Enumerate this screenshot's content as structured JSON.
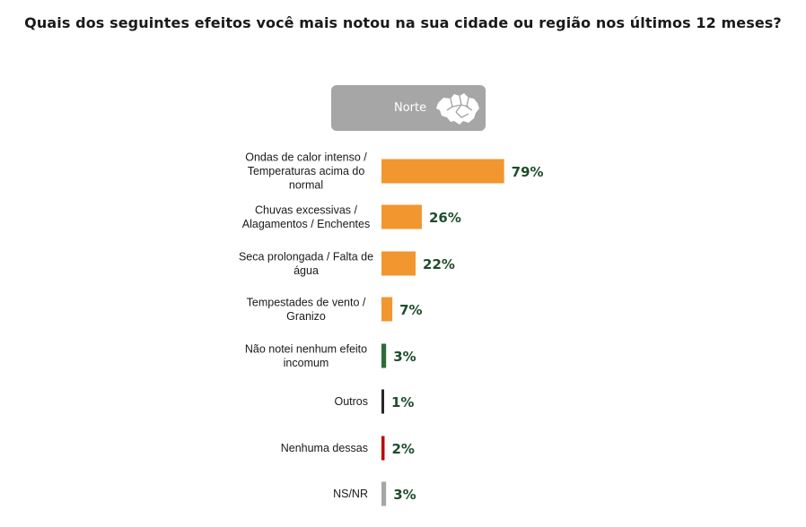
{
  "title": "Quais dos seguintes efeitos você mais notou na sua cidade ou região nos últimos 12 meses?",
  "region": {
    "label": "Norte",
    "icon": "brazil-map-icon"
  },
  "colors": {
    "orange": "#f29630",
    "green": "#2e6b36",
    "dark": "#262626",
    "red": "#c00000",
    "gray": "#a6a6a6",
    "valueText": "#1e4d2b"
  },
  "chart_data": {
    "type": "bar",
    "orientation": "horizontal",
    "categories": [
      "Ondas de calor intenso / Temperaturas acima do normal",
      "Chuvas excessivas / Alagamentos / Enchentes",
      "Seca prolongada / Falta de água",
      "Tempestades de vento / Granizo",
      "Não notei nenhum efeito incomum",
      "Outros",
      "Nenhuma dessas",
      "NS/NR"
    ],
    "label_lines": [
      [
        "Ondas de calor intenso /",
        "Temperaturas acima do",
        "normal"
      ],
      [
        "Chuvas excessivas /",
        "Alagamentos / Enchentes"
      ],
      [
        "Seca prolongada / Falta de",
        "água"
      ],
      [
        "Tempestades de vento /",
        "Granizo"
      ],
      [
        "Não notei nenhum efeito",
        "incomum"
      ],
      [
        "Outros"
      ],
      [
        "Nenhuma dessas"
      ],
      [
        "NS/NR"
      ]
    ],
    "values": [
      79,
      26,
      22,
      7,
      3,
      1,
      2,
      3
    ],
    "value_labels": [
      "79%",
      "26%",
      "22%",
      "7%",
      "3%",
      "1%",
      "2%",
      "3%"
    ],
    "bar_colors": [
      "#f29630",
      "#f29630",
      "#f29630",
      "#f29630",
      "#2e6b36",
      "#262626",
      "#c00000",
      "#a6a6a6"
    ],
    "unit": "%"
  }
}
